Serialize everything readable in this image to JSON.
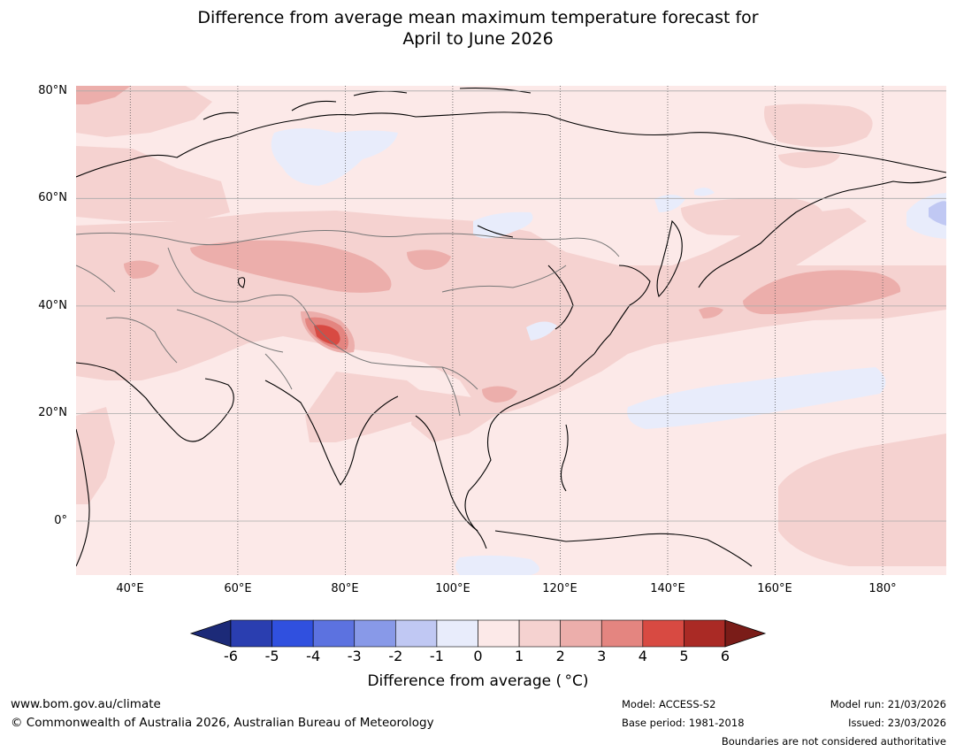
{
  "title": {
    "line1": "Difference from average mean maximum temperature forecast for",
    "line2": "April to June 2026"
  },
  "map": {
    "region": "Asia and western Pacific",
    "lon_range": [
      30,
      192
    ],
    "lat_range": [
      -10,
      81
    ],
    "lat_labels": [
      {
        "lat": 80,
        "text": "80°N"
      },
      {
        "lat": 60,
        "text": "60°N"
      },
      {
        "lat": 40,
        "text": "40°N"
      },
      {
        "lat": 20,
        "text": "20°N"
      },
      {
        "lat": 0,
        "text": "0°"
      }
    ],
    "lon_labels": [
      {
        "lon": 40,
        "text": "40°E"
      },
      {
        "lon": 60,
        "text": "60°E"
      },
      {
        "lon": 80,
        "text": "80°E"
      },
      {
        "lon": 100,
        "text": "100°E"
      },
      {
        "lon": 120,
        "text": "120°E"
      },
      {
        "lon": 140,
        "text": "140°E"
      },
      {
        "lon": 160,
        "text": "160°E"
      },
      {
        "lon": 180,
        "text": "180°"
      }
    ]
  },
  "colorbar": {
    "ticks": [
      "-6",
      "-5",
      "-4",
      "-3",
      "-2",
      "-1",
      "0",
      "1",
      "2",
      "3",
      "4",
      "5",
      "6"
    ],
    "colors": [
      "#1c2a78",
      "#2a3eb0",
      "#3050df",
      "#5c72e0",
      "#8899e8",
      "#c0c8f3",
      "#e8ecfb",
      "#fce9e8",
      "#f5d2d0",
      "#ecaeab",
      "#e48580",
      "#d84a42",
      "#aa2a25",
      "#7a1c18"
    ],
    "label": "Difference from average ( °C)"
  },
  "footer": {
    "website": "www.bom.gov.au/climate",
    "copyright": "© Commonwealth of Australia 2026, Australian Bureau of Meteorology",
    "model": "Model: ACCESS-S2",
    "base_period": "Base period: 1981-2018",
    "model_run": "Model run: 21/03/2026",
    "issued": "Issued: 23/03/2026",
    "disclaimer": "Boundaries are not considered authoritative"
  }
}
